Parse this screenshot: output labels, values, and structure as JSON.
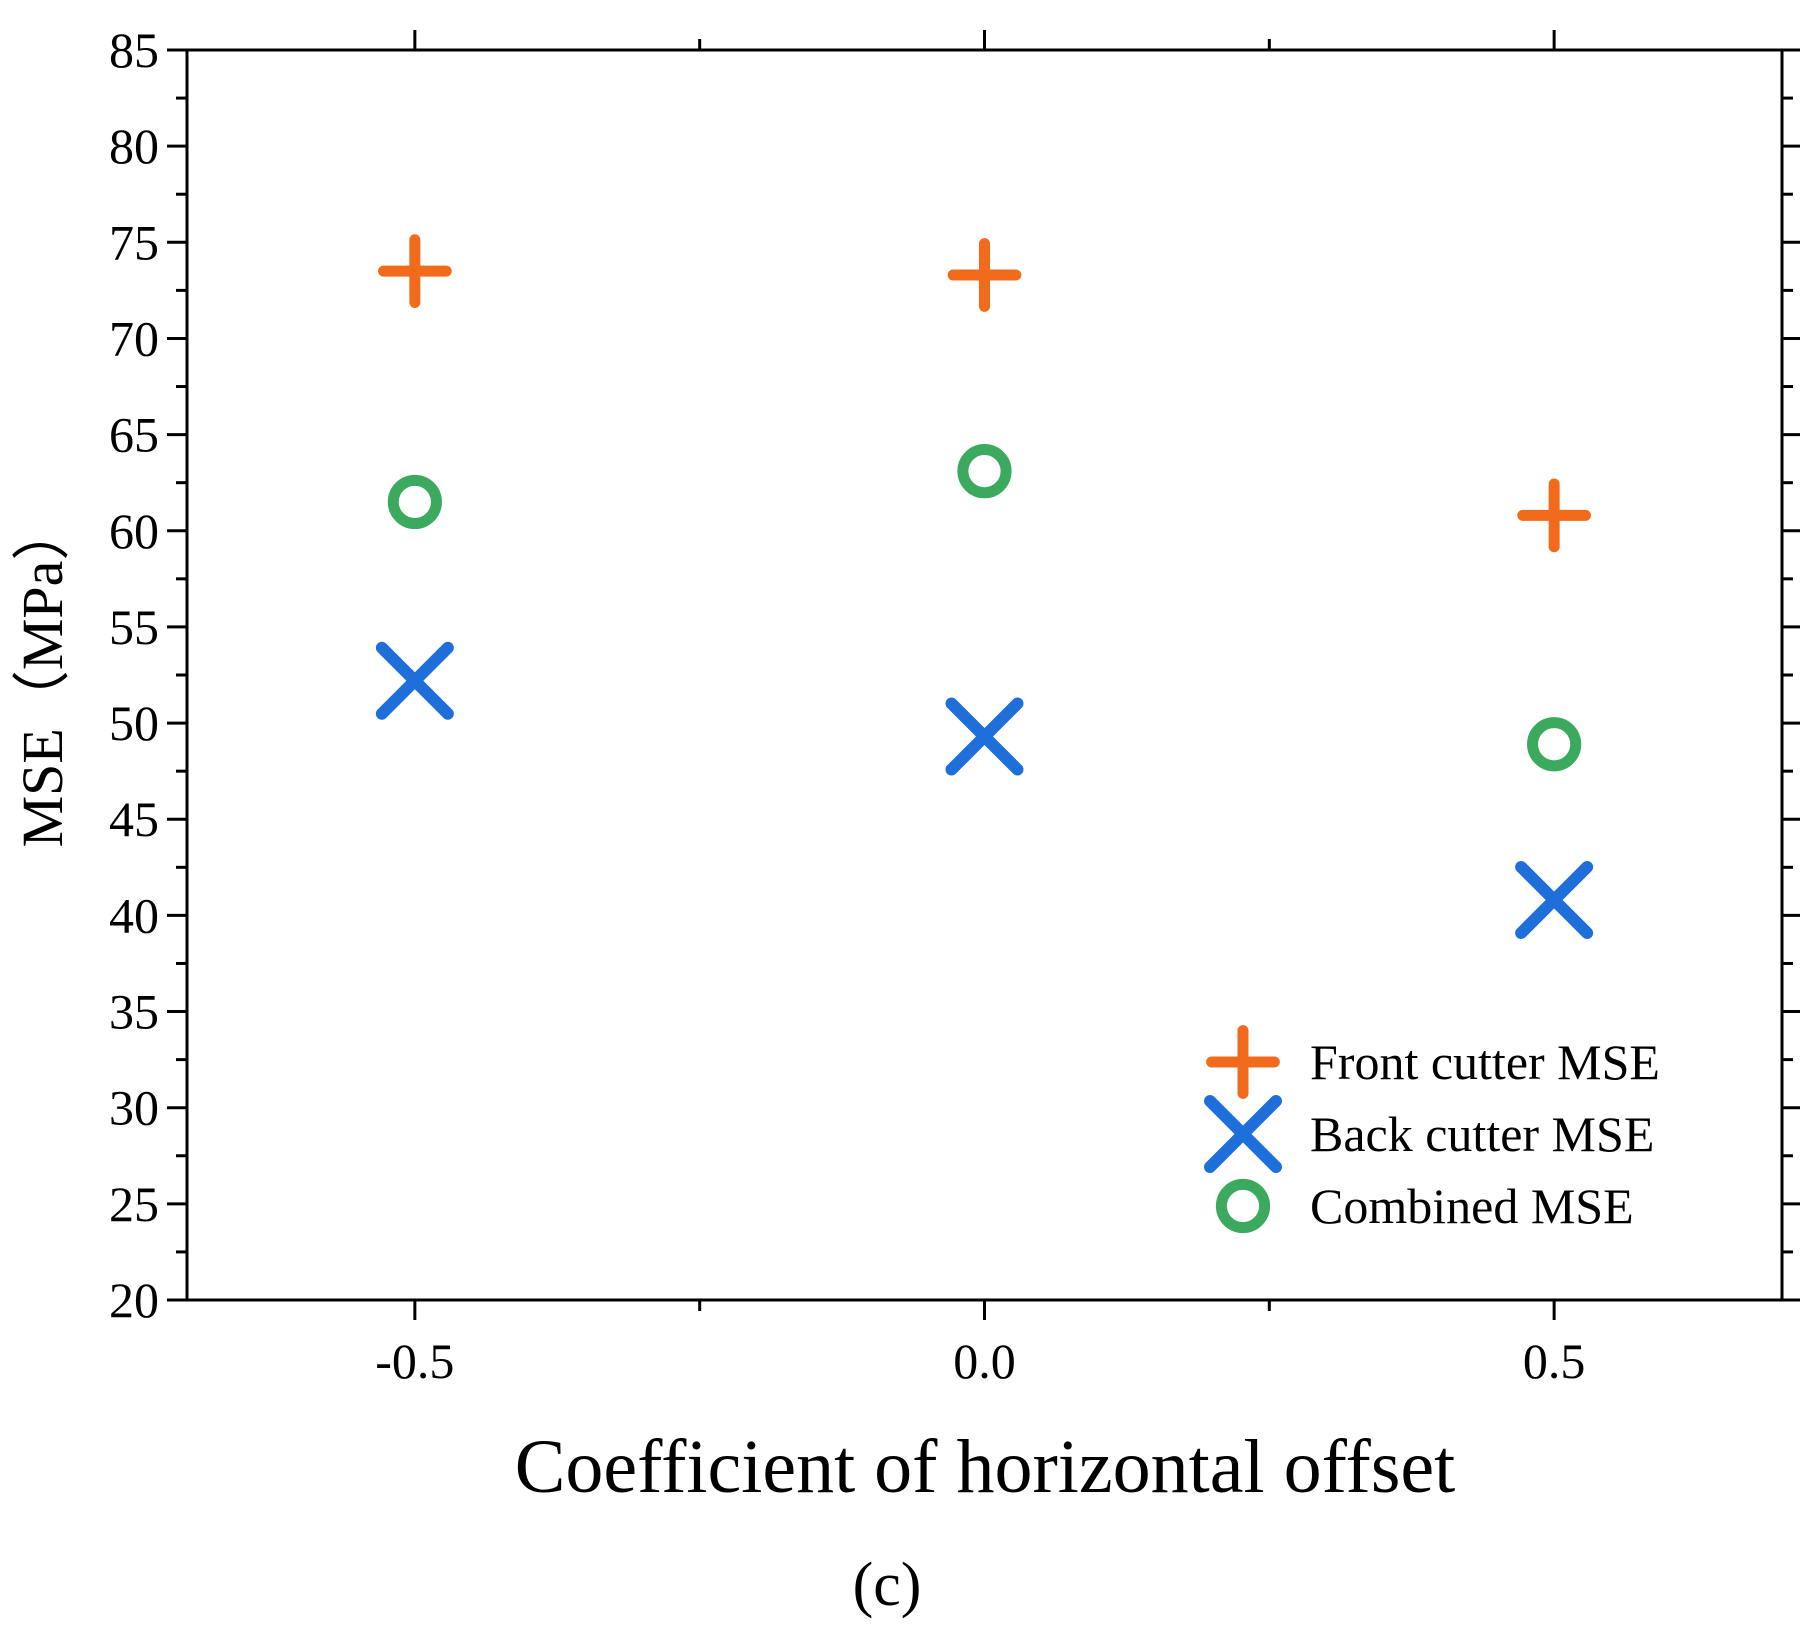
{
  "chart_data": {
    "type": "scatter",
    "title": "",
    "xlabel": "Coefficient of horizontal offset",
    "ylabel": "MSE（MPa）",
    "caption": "(c)",
    "xlim": [
      -0.7,
      0.7
    ],
    "ylim": [
      20,
      85
    ],
    "x_ticks": [
      -0.5,
      0.0,
      0.5
    ],
    "x_tick_labels": [
      "-0.5",
      "0.0",
      "0.5"
    ],
    "y_ticks": [
      20,
      25,
      30,
      35,
      40,
      45,
      50,
      55,
      60,
      65,
      70,
      75,
      80,
      85
    ],
    "y_tick_labels": [
      "20",
      "25",
      "30",
      "35",
      "40",
      "45",
      "50",
      "55",
      "60",
      "65",
      "70",
      "75",
      "80",
      "85"
    ],
    "grid": false,
    "legend_position": "bottom-right",
    "series": [
      {
        "name": "Front cutter MSE",
        "marker": "plus",
        "color": "#F26B1D",
        "x": [
          -0.5,
          0.0,
          0.5
        ],
        "y": [
          73.5,
          73.3,
          60.8
        ]
      },
      {
        "name": "Back cutter MSE",
        "marker": "x",
        "color": "#1F6FDB",
        "x": [
          -0.5,
          0.0,
          0.5
        ],
        "y": [
          52.2,
          49.3,
          40.8
        ]
      },
      {
        "name": "Combined MSE",
        "marker": "circle",
        "color": "#3BAA5E",
        "x": [
          -0.5,
          0.0,
          0.5
        ],
        "y": [
          61.5,
          63.1,
          48.9
        ]
      }
    ]
  }
}
